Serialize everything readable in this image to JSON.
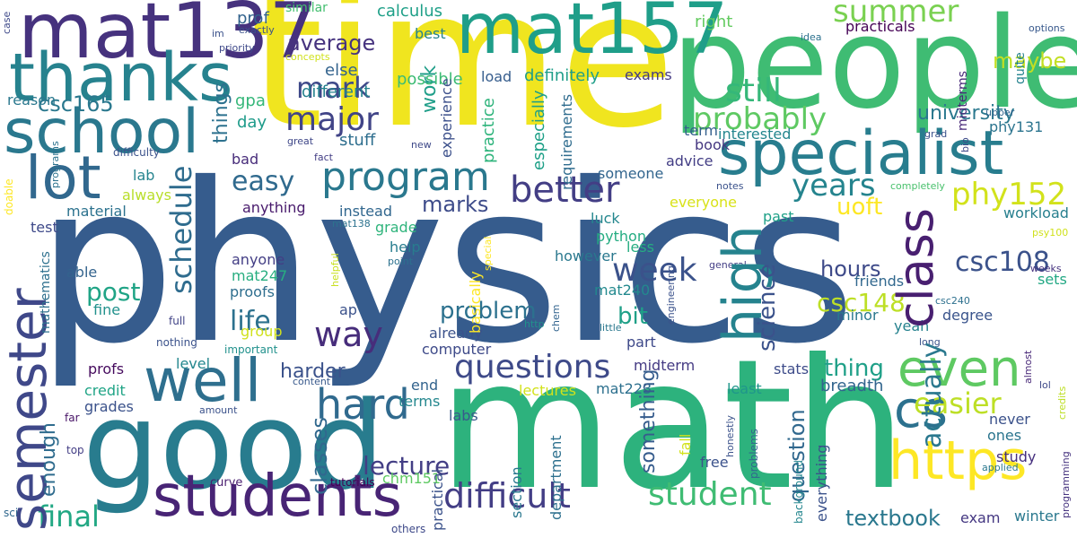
{
  "words": [
    {
      "text": "physics",
      "color": "#365c8d"
    },
    {
      "text": "math",
      "color": "#2db27d"
    },
    {
      "text": "time",
      "color": "#f0e51f"
    },
    {
      "text": "people",
      "color": "#3fbc73"
    },
    {
      "text": "good",
      "color": "#287c8e"
    },
    {
      "text": "mat137",
      "color": "#46327e"
    },
    {
      "text": "mat157",
      "color": "#1f9e89"
    },
    {
      "text": "thanks",
      "color": "#26828e"
    },
    {
      "text": "school",
      "color": "#2a788e"
    },
    {
      "text": "specialist",
      "color": "#287d8e"
    },
    {
      "text": "lot",
      "color": "#31688e"
    },
    {
      "text": "well",
      "color": "#2e6f8e"
    },
    {
      "text": "students",
      "color": "#482475"
    },
    {
      "text": "semester",
      "color": "#3f4889"
    },
    {
      "text": "program",
      "color": "#2a788e"
    },
    {
      "text": "better",
      "color": "#433e85"
    },
    {
      "text": "high",
      "color": "#25838e"
    },
    {
      "text": "class",
      "color": "#481f70"
    },
    {
      "text": "even",
      "color": "#5ec962"
    },
    {
      "text": "https",
      "color": "#fde725"
    },
    {
      "text": "cs",
      "color": "#2c718e"
    },
    {
      "text": "hard",
      "color": "#306a8e"
    },
    {
      "text": "questions",
      "color": "#3e4a89"
    },
    {
      "text": "way",
      "color": "#472d7b"
    },
    {
      "text": "difficult",
      "color": "#433e85"
    },
    {
      "text": "student",
      "color": "#3fbc73"
    },
    {
      "text": "final",
      "color": "#22a884"
    },
    {
      "text": "week",
      "color": "#3b528b"
    },
    {
      "text": "easier",
      "color": "#bddf26"
    },
    {
      "text": "actually",
      "color": "#2a788e"
    },
    {
      "text": "probably",
      "color": "#5ec962"
    },
    {
      "text": "major",
      "color": "#414487"
    },
    {
      "text": "mark",
      "color": "#3e4989"
    },
    {
      "text": "still",
      "color": "#35b779"
    },
    {
      "text": "summer",
      "color": "#7ad151"
    },
    {
      "text": "university",
      "color": "#2a788e"
    },
    {
      "text": "years",
      "color": "#25848e"
    },
    {
      "text": "phy152",
      "color": "#d2e21b"
    },
    {
      "text": "schedule",
      "color": "#2f6c8e"
    },
    {
      "text": "csc108",
      "color": "#3b528b"
    },
    {
      "text": "csc148",
      "color": "#bddf26"
    },
    {
      "text": "easy",
      "color": "#306a8e"
    },
    {
      "text": "average",
      "color": "#46337f"
    },
    {
      "text": "csc165",
      "color": "#2a788e"
    },
    {
      "text": "problem",
      "color": "#2c718e"
    },
    {
      "text": "lecture",
      "color": "#433e85"
    },
    {
      "text": "science",
      "color": "#3b528b"
    },
    {
      "text": "question",
      "color": "#31688e"
    },
    {
      "text": "something",
      "color": "#365c8d"
    },
    {
      "text": "textbook",
      "color": "#2a788e"
    },
    {
      "text": "harder",
      "color": "#3b528b"
    },
    {
      "text": "life",
      "color": "#2c718e"
    },
    {
      "text": "post",
      "color": "#20a486"
    },
    {
      "text": "classes",
      "color": "#31688e"
    },
    {
      "text": "marks",
      "color": "#3e4c8a"
    },
    {
      "text": "enough",
      "color": "#2f6c8e"
    },
    {
      "text": "hours",
      "color": "#3e4a89"
    },
    {
      "text": "bit",
      "color": "#1fa088"
    },
    {
      "text": "uoft",
      "color": "#fde725"
    },
    {
      "text": "thing",
      "color": "#1fa088"
    },
    {
      "text": "maybe",
      "color": "#c2df23"
    },
    {
      "text": "work",
      "color": "#1f9e89"
    },
    {
      "text": "things",
      "color": "#2c718e"
    },
    {
      "text": "definitely",
      "color": "#1f9e89"
    },
    {
      "text": "possible",
      "color": "#3dbc74"
    },
    {
      "text": "calculus",
      "color": "#1fa088"
    },
    {
      "text": "similar",
      "color": "#44bf70"
    },
    {
      "text": "prof",
      "color": "#33638d"
    },
    {
      "text": "exams",
      "color": "#443a83"
    },
    {
      "text": "load",
      "color": "#365d8d"
    },
    {
      "text": "best",
      "color": "#25838e"
    },
    {
      "text": "right",
      "color": "#63cb5f"
    },
    {
      "text": "practicals",
      "color": "#440154"
    },
    {
      "text": "else",
      "color": "#33638d"
    },
    {
      "text": "different",
      "color": "#26828e"
    },
    {
      "text": "gpa",
      "color": "#35b779"
    },
    {
      "text": "day",
      "color": "#1e9b8a"
    },
    {
      "text": "stuff",
      "color": "#2e6e8e"
    },
    {
      "text": "experience",
      "color": "#3c508b"
    },
    {
      "text": "practice",
      "color": "#2fb47c"
    },
    {
      "text": "especially",
      "color": "#1fa088"
    },
    {
      "text": "requirements",
      "color": "#2f6c8e"
    },
    {
      "text": "term",
      "color": "#35608d"
    },
    {
      "text": "book",
      "color": "#453781"
    },
    {
      "text": "interested",
      "color": "#24868e"
    },
    {
      "text": "phy131",
      "color": "#2b748e"
    },
    {
      "text": "advice",
      "color": "#433e85"
    },
    {
      "text": "someone",
      "color": "#32658e"
    },
    {
      "text": "bad",
      "color": "#472c7a"
    },
    {
      "text": "lab",
      "color": "#25848e"
    },
    {
      "text": "always",
      "color": "#b8de29"
    },
    {
      "text": "material",
      "color": "#2c728e"
    },
    {
      "text": "anything",
      "color": "#481a6c"
    },
    {
      "text": "instead",
      "color": "#31678e"
    },
    {
      "text": "everyone",
      "color": "#d8e219"
    },
    {
      "text": "grade",
      "color": "#2fb47c"
    },
    {
      "text": "past",
      "color": "#1fa188"
    },
    {
      "text": "workload",
      "color": "#277f8e"
    },
    {
      "text": "luck",
      "color": "#24878e"
    },
    {
      "text": "python",
      "color": "#25ac82"
    },
    {
      "text": "less",
      "color": "#26ad81"
    },
    {
      "text": "however",
      "color": "#2a788e"
    },
    {
      "text": "mat240",
      "color": "#23898e"
    },
    {
      "text": "help",
      "color": "#287c8e"
    },
    {
      "text": "anyone",
      "color": "#433e85"
    },
    {
      "text": "mat247",
      "color": "#28ae80"
    },
    {
      "text": "proofs",
      "color": "#2e6e8e"
    },
    {
      "text": "friends",
      "color": "#31688e"
    },
    {
      "text": "minor",
      "color": "#2a788e"
    },
    {
      "text": "degree",
      "color": "#3a548c"
    },
    {
      "text": "yeah",
      "color": "#26828e"
    },
    {
      "text": "sets",
      "color": "#22a884"
    },
    {
      "text": "stats",
      "color": "#3e4c8a"
    },
    {
      "text": "midterm",
      "color": "#443a83"
    },
    {
      "text": "level",
      "color": "#24878e"
    },
    {
      "text": "profs",
      "color": "#460b5e"
    },
    {
      "text": "credit",
      "color": "#20a486"
    },
    {
      "text": "grades",
      "color": "#3b528b"
    },
    {
      "text": "computer",
      "color": "#3e4a89"
    },
    {
      "text": "already",
      "color": "#3b528b"
    },
    {
      "text": "part",
      "color": "#3e4989"
    },
    {
      "text": "breadth",
      "color": "#32658e"
    },
    {
      "text": "least",
      "color": "#1f968b"
    },
    {
      "text": "never",
      "color": "#3b528b"
    },
    {
      "text": "ones",
      "color": "#2b758e"
    },
    {
      "text": "study",
      "color": "#46307e"
    },
    {
      "text": "end",
      "color": "#33638d"
    },
    {
      "text": "terms",
      "color": "#24878e"
    },
    {
      "text": "lectures",
      "color": "#d2e21b"
    },
    {
      "text": "mat223",
      "color": "#2d708e"
    },
    {
      "text": "labs",
      "color": "#38598c"
    },
    {
      "text": "free",
      "color": "#3b528b"
    },
    {
      "text": "exam",
      "color": "#453882"
    },
    {
      "text": "winter",
      "color": "#2a788e"
    },
    {
      "text": "chm151",
      "color": "#5ec962"
    },
    {
      "text": "curve",
      "color": "#481c6e"
    },
    {
      "text": "tutorials",
      "color": "#440154"
    },
    {
      "text": "others",
      "color": "#3e4989"
    },
    {
      "text": "mathematics",
      "color": "#2d708e"
    },
    {
      "text": "able",
      "color": "#33638d"
    },
    {
      "text": "fine",
      "color": "#21918c"
    },
    {
      "text": "ap",
      "color": "#3b528b"
    },
    {
      "text": "full",
      "color": "#414487"
    },
    {
      "text": "group",
      "color": "#d0e11c"
    },
    {
      "text": "nothing",
      "color": "#3b528b"
    },
    {
      "text": "important",
      "color": "#21918c"
    },
    {
      "text": "content",
      "color": "#38598c"
    },
    {
      "text": "amount",
      "color": "#3b528b"
    },
    {
      "text": "far",
      "color": "#481467"
    },
    {
      "text": "top",
      "color": "#433e85"
    },
    {
      "text": "sci",
      "color": "#31688e"
    },
    {
      "text": "test",
      "color": "#3e4989"
    },
    {
      "text": "doable",
      "color": "#fde725"
    },
    {
      "text": "programs",
      "color": "#2c728e"
    },
    {
      "text": "difficulty",
      "color": "#3b528b"
    },
    {
      "text": "fact",
      "color": "#433e85"
    },
    {
      "text": "new",
      "color": "#3e4989"
    },
    {
      "text": "great",
      "color": "#3f4788"
    },
    {
      "text": "reason",
      "color": "#2a788e"
    },
    {
      "text": "case",
      "color": "#3e4989"
    },
    {
      "text": "im",
      "color": "#3b528b"
    },
    {
      "text": "exactly",
      "color": "#3b528b"
    },
    {
      "text": "priority",
      "color": "#3e4989"
    },
    {
      "text": "concepts",
      "color": "#d0e11c"
    },
    {
      "text": "idea",
      "color": "#2c718e"
    },
    {
      "text": "options",
      "color": "#38598c"
    },
    {
      "text": "upper",
      "color": "#32658e"
    },
    {
      "text": "quite",
      "color": "#25838e"
    },
    {
      "text": "midterms",
      "color": "#482878"
    },
    {
      "text": "grad",
      "color": "#3b528b"
    },
    {
      "text": "bio",
      "color": "#3e4989"
    },
    {
      "text": "completely",
      "color": "#4ac16d"
    },
    {
      "text": "notes",
      "color": "#3b528b"
    },
    {
      "text": "mat138",
      "color": "#2c728e"
    },
    {
      "text": "special",
      "color": "#fde725"
    },
    {
      "text": "helpful",
      "color": "#c8e020"
    },
    {
      "text": "point",
      "color": "#2c718e"
    },
    {
      "text": "basically",
      "color": "#fde725"
    },
    {
      "text": "http",
      "color": "#21918c"
    },
    {
      "text": "chem",
      "color": "#32648e"
    },
    {
      "text": "little",
      "color": "#2a788e"
    },
    {
      "text": "engineering",
      "color": "#3b528b"
    },
    {
      "text": "general",
      "color": "#433e85"
    },
    {
      "text": "psy100",
      "color": "#d0e11c"
    },
    {
      "text": "weeks",
      "color": "#46337f"
    },
    {
      "text": "csc240",
      "color": "#2d708e"
    },
    {
      "text": "long",
      "color": "#3b528b"
    },
    {
      "text": "almost",
      "color": "#482878"
    },
    {
      "text": "lol",
      "color": "#3e4989"
    },
    {
      "text": "credits",
      "color": "#bddf26"
    },
    {
      "text": "programming",
      "color": "#46337f"
    },
    {
      "text": "applied",
      "color": "#2a788e"
    },
    {
      "text": "honestly",
      "color": "#3b528b"
    },
    {
      "text": "problems",
      "color": "#32658e"
    },
    {
      "text": "background",
      "color": "#24868e"
    },
    {
      "text": "everything",
      "color": "#3b528b"
    },
    {
      "text": "department",
      "color": "#2d708e"
    },
    {
      "text": "section",
      "color": "#2a788e"
    },
    {
      "text": "practical",
      "color": "#3b528b"
    },
    {
      "text": "fall",
      "color": "#d2e21b"
    }
  ]
}
